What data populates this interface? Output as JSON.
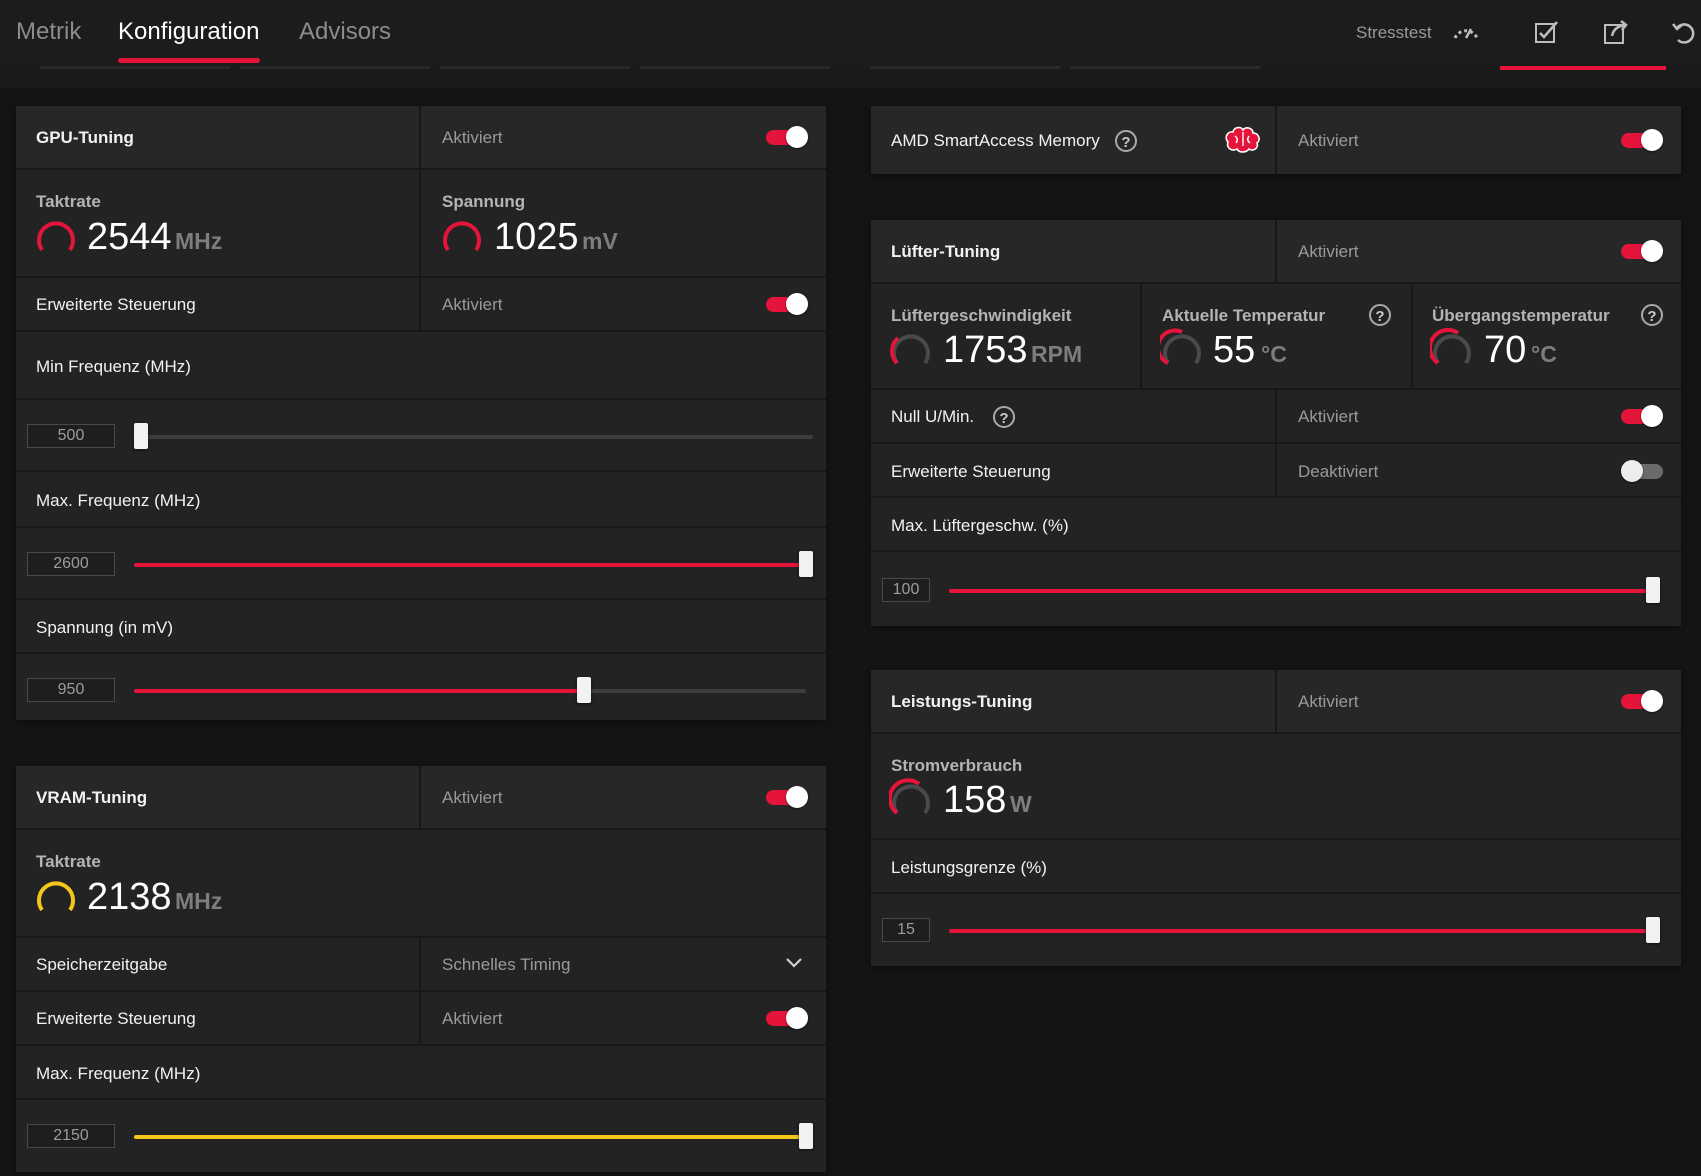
{
  "tabs": [
    {
      "label": "Metrik",
      "active": false
    },
    {
      "label": "Konfiguration",
      "active": true
    },
    {
      "label": "Advisors",
      "active": false
    }
  ],
  "toolbar": {
    "stress_label": "Stresstest",
    "icons": [
      "speedometer-icon",
      "save-check-icon",
      "export-icon",
      "reset-icon"
    ]
  },
  "accent_color": "#e4143a",
  "vram_color": "#f4c619",
  "gpu_tuning": {
    "title": "GPU-Tuning",
    "status": "Aktiviert",
    "enabled": true,
    "clock": {
      "label": "Taktrate",
      "value": "2544",
      "unit": "MHz"
    },
    "voltage": {
      "label": "Spannung",
      "value": "1025",
      "unit": "mV"
    },
    "advanced": {
      "label": "Erweiterte Steuerung",
      "status": "Aktiviert",
      "enabled": true
    },
    "min_freq": {
      "label": "Min Frequenz (MHz)",
      "value": "500",
      "fraction": 0.0
    },
    "max_freq": {
      "label": "Max. Frequenz (MHz)",
      "value": "2600",
      "fraction": 1.0
    },
    "voltage_slider": {
      "label": "Spannung (in mV)",
      "value": "950",
      "fraction": 0.67
    }
  },
  "vram_tuning": {
    "title": "VRAM-Tuning",
    "status": "Aktiviert",
    "enabled": true,
    "clock": {
      "label": "Taktrate",
      "value": "2138",
      "unit": "MHz"
    },
    "timing": {
      "label": "Speicherzeitgabe",
      "value": "Schnelles Timing"
    },
    "advanced": {
      "label": "Erweiterte Steuerung",
      "status": "Aktiviert",
      "enabled": true
    },
    "max_freq": {
      "label": "Max. Frequenz (MHz)",
      "value": "2150",
      "fraction": 1.0
    }
  },
  "sam": {
    "label": "AMD SmartAccess Memory",
    "status": "Aktiviert",
    "enabled": true
  },
  "fan_tuning": {
    "title": "Lüfter-Tuning",
    "status": "Aktiviert",
    "enabled": true,
    "speed": {
      "label": "Lüftergeschwindigkeit",
      "value": "1753",
      "unit": "RPM"
    },
    "temp": {
      "label": "Aktuelle Temperatur",
      "value": "55",
      "unit": "°C"
    },
    "junction": {
      "label": "Übergangstemperatur",
      "value": "70",
      "unit": "°C"
    },
    "zero_rpm": {
      "label": "Null U/Min.",
      "status": "Aktiviert",
      "enabled": true
    },
    "advanced": {
      "label": "Erweiterte Steuerung",
      "status": "Deaktiviert",
      "enabled": false
    },
    "max_speed": {
      "label": "Max. Lüftergeschw. (%)",
      "value": "100",
      "fraction": 1.0
    }
  },
  "power_tuning": {
    "title": "Leistungs-Tuning",
    "status": "Aktiviert",
    "enabled": true,
    "power": {
      "label": "Stromverbrauch",
      "value": "158",
      "unit": "W"
    },
    "limit": {
      "label": "Leistungsgrenze (%)",
      "value": "15",
      "fraction": 1.0
    }
  }
}
